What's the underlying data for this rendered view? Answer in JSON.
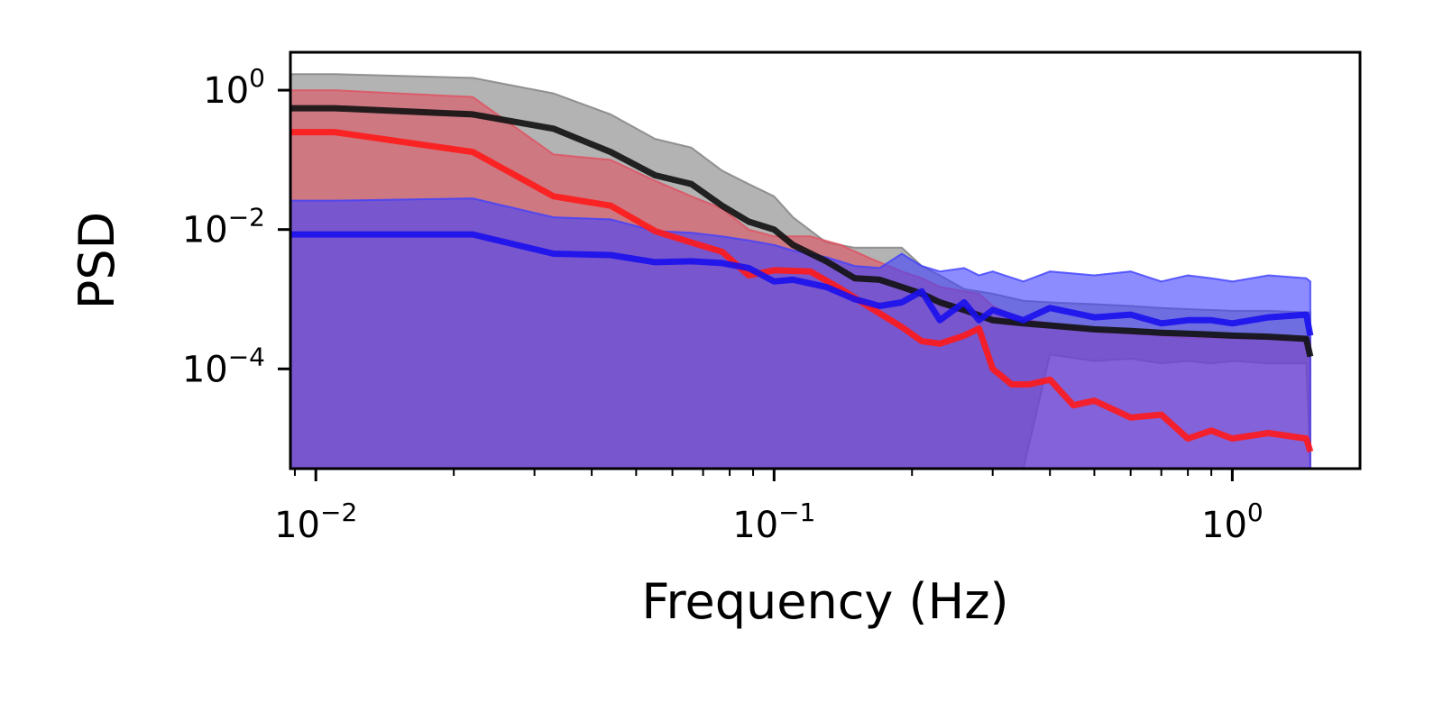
{
  "chart_data": {
    "type": "line",
    "title": "",
    "xlabel": "Frequency (Hz)",
    "ylabel": "PSD",
    "xscale": "log",
    "yscale": "log",
    "xlim": [
      0.0088,
      1.9
    ],
    "ylim": [
      3.7e-06,
      3.5
    ],
    "grid": false,
    "legend": "none",
    "x_ticks": [
      {
        "value": 0.01,
        "base": "10",
        "exp": "−2"
      },
      {
        "value": 0.1,
        "base": "10",
        "exp": "−1"
      },
      {
        "value": 1,
        "base": "10",
        "exp": "0"
      }
    ],
    "y_ticks": [
      {
        "value": 1,
        "base": "10",
        "exp": "0"
      },
      {
        "value": 0.01,
        "base": "10",
        "exp": "−2"
      },
      {
        "value": 0.0001,
        "base": "10",
        "exp": "−4"
      }
    ],
    "series": [
      {
        "color": "#808080",
        "line_color": "#111111",
        "x": [
          0.0088,
          0.011,
          0.022,
          0.033,
          0.044,
          0.055,
          0.066,
          0.077,
          0.088,
          0.1,
          0.11,
          0.13,
          0.15,
          0.17,
          0.19,
          0.21,
          0.23,
          0.26,
          0.3,
          0.35,
          0.4,
          0.5,
          0.6,
          0.7,
          0.8,
          0.9,
          1.0,
          1.2,
          1.45,
          1.48
        ],
        "values": [
          0.55,
          0.55,
          0.45,
          0.28,
          0.13,
          0.06,
          0.045,
          0.022,
          0.013,
          0.01,
          0.006,
          0.0035,
          0.002,
          0.0019,
          0.0015,
          0.0012,
          0.0009,
          0.0007,
          0.0005,
          0.00045,
          0.00042,
          0.00037,
          0.00035,
          0.00033,
          0.00032,
          0.00031,
          0.0003,
          0.00029,
          0.00027,
          0.00015
        ],
        "upper": [
          1.7,
          1.7,
          1.5,
          0.9,
          0.45,
          0.2,
          0.15,
          0.07,
          0.045,
          0.03,
          0.015,
          0.0065,
          0.0055,
          0.0055,
          0.0055,
          0.003,
          0.0022,
          0.0014,
          0.0012,
          0.00095,
          0.0009,
          0.00085,
          0.0008,
          0.00075,
          0.00072,
          0.0007,
          0.00068,
          0.00068,
          0.00065,
          0.00065
        ],
        "lower": [
          3.7e-06,
          3.7e-06,
          3.7e-06,
          3.7e-06,
          3.7e-06,
          3.7e-06,
          3.7e-06,
          3.7e-06,
          3.7e-06,
          3.7e-06,
          3.7e-06,
          3.7e-06,
          3.7e-06,
          3.7e-06,
          3.7e-06,
          3.7e-06,
          3.7e-06,
          3.7e-06,
          3.7e-06,
          3.7e-06,
          0.00016,
          0.00013,
          0.00014,
          0.00012,
          0.00013,
          0.00012,
          0.00013,
          0.00012,
          0.00012,
          3.7e-06
        ]
      },
      {
        "color": "#e05060",
        "line_color": "#ff1a1a",
        "x": [
          0.0088,
          0.011,
          0.022,
          0.033,
          0.044,
          0.055,
          0.066,
          0.077,
          0.088,
          0.1,
          0.12,
          0.14,
          0.16,
          0.19,
          0.21,
          0.23,
          0.26,
          0.28,
          0.3,
          0.33,
          0.36,
          0.4,
          0.45,
          0.5,
          0.6,
          0.7,
          0.8,
          0.9,
          1.0,
          1.2,
          1.45,
          1.48
        ],
        "values": [
          0.25,
          0.25,
          0.13,
          0.03,
          0.022,
          0.0095,
          0.0065,
          0.0048,
          0.0022,
          0.0026,
          0.0025,
          0.0014,
          0.0008,
          0.0004,
          0.00025,
          0.00023,
          0.0003,
          0.00038,
          0.0001,
          6e-05,
          6e-05,
          7e-05,
          3e-05,
          3.5e-05,
          2e-05,
          2.2e-05,
          1e-05,
          1.3e-05,
          1e-05,
          1.2e-05,
          1e-05,
          6.5e-06
        ],
        "upper": [
          1.0,
          1.0,
          0.8,
          0.12,
          0.1,
          0.05,
          0.03,
          0.02,
          0.01,
          0.008,
          0.008,
          0.006,
          0.004,
          0.0025,
          0.002,
          0.0015,
          0.0013,
          0.0012,
          0.0008,
          0.0006,
          0.0005,
          0.00045,
          0.0004,
          0.00035,
          0.00032,
          0.0003,
          0.00028,
          0.00028,
          0.00028,
          0.00028,
          0.00028,
          0.00028
        ],
        "lower": [
          3.7e-06,
          3.7e-06,
          3.7e-06,
          3.7e-06,
          3.7e-06,
          3.7e-06,
          3.7e-06,
          3.7e-06,
          3.7e-06,
          3.7e-06,
          3.7e-06,
          3.7e-06,
          3.7e-06,
          3.7e-06,
          3.7e-06,
          3.7e-06,
          3.7e-06,
          3.7e-06,
          3.7e-06,
          3.7e-06,
          3.7e-06,
          3.7e-06,
          3.7e-06,
          3.7e-06,
          3.7e-06,
          3.7e-06,
          3.7e-06,
          3.7e-06,
          3.7e-06,
          3.7e-06,
          3.7e-06,
          3.7e-06
        ]
      },
      {
        "color": "#4040ff",
        "line_color": "#1a10ee",
        "x": [
          0.0088,
          0.011,
          0.022,
          0.033,
          0.044,
          0.055,
          0.066,
          0.077,
          0.088,
          0.1,
          0.11,
          0.13,
          0.15,
          0.17,
          0.19,
          0.21,
          0.23,
          0.26,
          0.28,
          0.3,
          0.35,
          0.4,
          0.5,
          0.6,
          0.7,
          0.8,
          0.9,
          1.0,
          1.2,
          1.45,
          1.48
        ],
        "values": [
          0.0085,
          0.0085,
          0.0085,
          0.0045,
          0.0043,
          0.0034,
          0.0035,
          0.0033,
          0.0028,
          0.0018,
          0.0019,
          0.0015,
          0.001,
          0.0008,
          0.0009,
          0.0013,
          0.0005,
          0.0009,
          0.0005,
          0.0007,
          0.0005,
          0.00075,
          0.00055,
          0.0006,
          0.00045,
          0.0005,
          0.0005,
          0.00045,
          0.00055,
          0.0006,
          0.0003
        ],
        "upper": [
          0.026,
          0.026,
          0.028,
          0.015,
          0.014,
          0.0095,
          0.009,
          0.008,
          0.007,
          0.006,
          0.005,
          0.004,
          0.003,
          0.0028,
          0.0045,
          0.003,
          0.0025,
          0.0028,
          0.0022,
          0.0025,
          0.0018,
          0.0025,
          0.0022,
          0.0025,
          0.0018,
          0.0022,
          0.002,
          0.0018,
          0.0022,
          0.002,
          0.0018
        ],
        "lower": [
          3.7e-06,
          3.7e-06,
          3.7e-06,
          3.7e-06,
          3.7e-06,
          3.7e-06,
          3.7e-06,
          3.7e-06,
          3.7e-06,
          3.7e-06,
          3.7e-06,
          3.7e-06,
          3.7e-06,
          3.7e-06,
          3.7e-06,
          3.7e-06,
          3.7e-06,
          3.7e-06,
          3.7e-06,
          3.7e-06,
          3.7e-06,
          3.7e-06,
          3.7e-06,
          3.7e-06,
          3.7e-06,
          3.7e-06,
          3.7e-06,
          3.7e-06,
          3.7e-06,
          3.7e-06,
          3.7e-06
        ]
      }
    ]
  }
}
